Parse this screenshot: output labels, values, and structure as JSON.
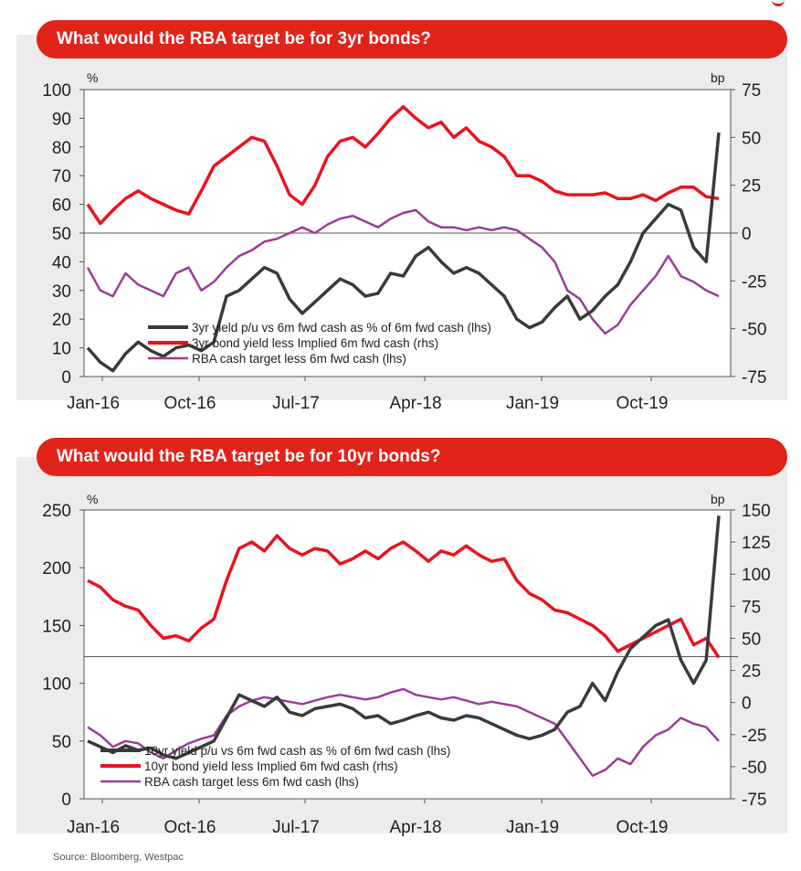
{
  "colors": {
    "accent": "#e2231a",
    "black_series": "#3a3a3a",
    "red_series": "#e8141e",
    "purple_series": "#9b3c96"
  },
  "source": "Source: Bloomberg, Westpac",
  "chart_data": [
    {
      "type": "line",
      "title": "What would the RBA target be for 3yr bonds?",
      "left_unit": "%",
      "right_unit": "bp",
      "left_ylim": [
        0,
        100
      ],
      "right_ylim": [
        -75,
        75
      ],
      "left_ticks": [
        "100",
        "90",
        "80",
        "70",
        "60",
        "50",
        "40",
        "30",
        "20",
        "10",
        "0"
      ],
      "right_ticks": [
        "75",
        "50",
        "25",
        "0",
        "-25",
        "-50",
        "-75"
      ],
      "x_labels": [
        "Jan-16",
        "Oct-16",
        "Jul-17",
        "Apr-18",
        "Jan-19",
        "Oct-19"
      ],
      "reference_line_left": 50,
      "series": [
        {
          "name": "3yr yield p/u vs 6m fwd cash as % of 6m fwd cash (lhs)",
          "axis": "left",
          "color": "#3a3a3a",
          "x": [
            0,
            1,
            2,
            3,
            4,
            5,
            6,
            7,
            8,
            9,
            10,
            11,
            12,
            13,
            14,
            15,
            16,
            17,
            18,
            19,
            20,
            21,
            22,
            23,
            24,
            25,
            26,
            27,
            28,
            29,
            30,
            31,
            32,
            33,
            34,
            35,
            36,
            37,
            38,
            39,
            40,
            41,
            42,
            43,
            44,
            45,
            46,
            47,
            48,
            49,
            50
          ],
          "values": [
            10,
            5,
            2,
            8,
            12,
            9,
            7,
            10,
            11,
            9,
            12,
            28,
            30,
            34,
            38,
            36,
            27,
            22,
            26,
            30,
            34,
            32,
            28,
            29,
            36,
            35,
            42,
            45,
            40,
            36,
            38,
            36,
            32,
            28,
            20,
            17,
            19,
            24,
            28,
            20,
            23,
            28,
            32,
            40,
            50,
            55,
            60,
            58,
            45,
            40,
            85
          ]
        },
        {
          "name": "3yr bond yield less Implied 6m fwd cash (rhs)",
          "axis": "right",
          "color": "#e8141e",
          "x": [
            0,
            1,
            2,
            3,
            4,
            5,
            6,
            7,
            8,
            9,
            10,
            11,
            12,
            13,
            14,
            15,
            16,
            17,
            18,
            19,
            20,
            21,
            22,
            23,
            24,
            25,
            26,
            27,
            28,
            29,
            30,
            31,
            32,
            33,
            34,
            35,
            36,
            37,
            38,
            39,
            40,
            41,
            42,
            43,
            44,
            45,
            46,
            47,
            48,
            49,
            50
          ],
          "values": [
            15,
            5,
            12,
            18,
            22,
            18,
            15,
            12,
            10,
            22,
            35,
            40,
            45,
            50,
            48,
            35,
            20,
            15,
            25,
            40,
            48,
            50,
            45,
            52,
            60,
            66,
            60,
            55,
            58,
            50,
            55,
            48,
            45,
            40,
            30,
            30,
            27,
            22,
            20,
            20,
            20,
            21,
            18,
            18,
            20,
            17,
            21,
            24,
            24,
            19,
            18
          ]
        },
        {
          "name": "RBA cash target less 6m fwd cash (lhs)",
          "axis": "left",
          "color": "#9b3c96",
          "x": [
            0,
            1,
            2,
            3,
            4,
            5,
            6,
            7,
            8,
            9,
            10,
            11,
            12,
            13,
            14,
            15,
            16,
            17,
            18,
            19,
            20,
            21,
            22,
            23,
            24,
            25,
            26,
            27,
            28,
            29,
            30,
            31,
            32,
            33,
            34,
            35,
            36,
            37,
            38,
            39,
            40,
            41,
            42,
            43,
            44,
            45,
            46,
            47,
            48,
            49,
            50
          ],
          "values": [
            38,
            30,
            28,
            36,
            32,
            30,
            28,
            36,
            38,
            30,
            33,
            38,
            42,
            44,
            47,
            48,
            50,
            52,
            50,
            53,
            55,
            56,
            54,
            52,
            55,
            57,
            58,
            54,
            52,
            52,
            51,
            52,
            51,
            52,
            51,
            48,
            45,
            40,
            30,
            27,
            20,
            15,
            18,
            25,
            30,
            35,
            42,
            35,
            33,
            30,
            28
          ]
        }
      ]
    },
    {
      "type": "line",
      "title": "What would the RBA target be for 10yr bonds?",
      "left_unit": "%",
      "right_unit": "bp",
      "left_ylim": [
        0,
        250
      ],
      "right_ylim": [
        -75,
        150
      ],
      "left_ticks": [
        "250",
        "200",
        "150",
        "100",
        "50",
        "0"
      ],
      "right_ticks": [
        "150",
        "125",
        "100",
        "75",
        "50",
        "25",
        "0",
        "-25",
        "-50",
        "-75"
      ],
      "x_labels": [
        "Jan-16",
        "Oct-16",
        "Jul-17",
        "Apr-18",
        "Jan-19",
        "Oct-19"
      ],
      "reference_line_left": 123,
      "series": [
        {
          "name": "10yr yield p/u vs 6m fwd cash as % of 6m fwd cash (lhs)",
          "axis": "left",
          "color": "#3a3a3a",
          "x": [
            0,
            1,
            2,
            3,
            4,
            5,
            6,
            7,
            8,
            9,
            10,
            11,
            12,
            13,
            14,
            15,
            16,
            17,
            18,
            19,
            20,
            21,
            22,
            23,
            24,
            25,
            26,
            27,
            28,
            29,
            30,
            31,
            32,
            33,
            34,
            35,
            36,
            37,
            38,
            39,
            40,
            41,
            42,
            43,
            44,
            45,
            46,
            47,
            48,
            49,
            50
          ],
          "values": [
            50,
            45,
            40,
            46,
            42,
            44,
            38,
            35,
            40,
            45,
            50,
            70,
            90,
            85,
            80,
            88,
            75,
            72,
            78,
            80,
            82,
            78,
            70,
            72,
            65,
            68,
            72,
            75,
            70,
            68,
            72,
            70,
            65,
            60,
            55,
            52,
            55,
            60,
            75,
            80,
            100,
            85,
            110,
            130,
            140,
            150,
            155,
            120,
            100,
            120,
            245
          ]
        },
        {
          "name": "10yr bond yield less Implied 6m fwd cash (rhs)",
          "axis": "right",
          "color": "#e8141e",
          "x": [
            0,
            1,
            2,
            3,
            4,
            5,
            6,
            7,
            8,
            9,
            10,
            11,
            12,
            13,
            14,
            15,
            16,
            17,
            18,
            19,
            20,
            21,
            22,
            23,
            24,
            25,
            26,
            27,
            28,
            29,
            30,
            31,
            32,
            33,
            34,
            35,
            36,
            37,
            38,
            39,
            40,
            41,
            42,
            43,
            44,
            45,
            46,
            47,
            48,
            49,
            50
          ],
          "values": [
            95,
            90,
            80,
            75,
            72,
            60,
            50,
            52,
            48,
            58,
            65,
            95,
            120,
            125,
            118,
            130,
            120,
            115,
            120,
            118,
            108,
            112,
            118,
            112,
            120,
            125,
            118,
            110,
            118,
            115,
            122,
            115,
            110,
            112,
            95,
            85,
            80,
            72,
            70,
            65,
            60,
            52,
            40,
            45,
            50,
            55,
            60,
            65,
            45,
            50,
            35
          ]
        },
        {
          "name": "RBA cash target less 6m fwd cash (lhs)",
          "axis": "left",
          "color": "#9b3c96",
          "x": [
            0,
            1,
            2,
            3,
            4,
            5,
            6,
            7,
            8,
            9,
            10,
            11,
            12,
            13,
            14,
            15,
            16,
            17,
            18,
            19,
            20,
            21,
            22,
            23,
            24,
            25,
            26,
            27,
            28,
            29,
            30,
            31,
            32,
            33,
            34,
            35,
            36,
            37,
            38,
            39,
            40,
            41,
            42,
            43,
            44,
            45,
            46,
            47,
            48,
            49,
            50
          ],
          "values": [
            62,
            55,
            45,
            50,
            48,
            40,
            35,
            42,
            48,
            52,
            55,
            72,
            80,
            85,
            88,
            86,
            84,
            82,
            85,
            88,
            90,
            88,
            86,
            88,
            92,
            95,
            90,
            88,
            86,
            88,
            85,
            82,
            84,
            82,
            80,
            75,
            70,
            65,
            50,
            35,
            20,
            25,
            35,
            30,
            45,
            55,
            60,
            70,
            65,
            62,
            50
          ]
        }
      ]
    }
  ]
}
